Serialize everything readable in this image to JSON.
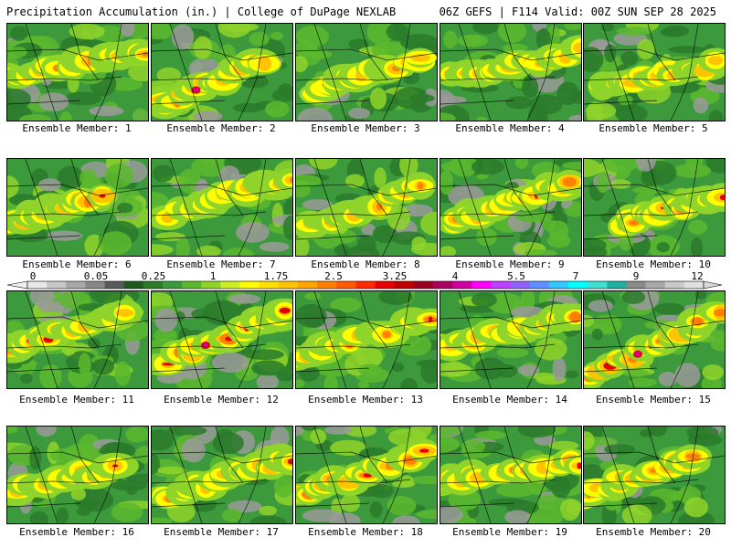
{
  "header": {
    "title_left": "Precipitation Accumulation (in.) | College of DuPage NEXLAB",
    "title_right": "06Z GEFS | F114 Valid: 00Z SUN SEP 28 2025"
  },
  "members": [
    {
      "label": "Ensemble Member: 1"
    },
    {
      "label": "Ensemble Member: 2"
    },
    {
      "label": "Ensemble Member: 3"
    },
    {
      "label": "Ensemble Member: 4"
    },
    {
      "label": "Ensemble Member: 5"
    },
    {
      "label": "Ensemble Member: 6"
    },
    {
      "label": "Ensemble Member: 7"
    },
    {
      "label": "Ensemble Member: 8"
    },
    {
      "label": "Ensemble Member: 9"
    },
    {
      "label": "Ensemble Member: 10"
    },
    {
      "label": "Ensemble Member: 11"
    },
    {
      "label": "Ensemble Member: 12"
    },
    {
      "label": "Ensemble Member: 13"
    },
    {
      "label": "Ensemble Member: 14"
    },
    {
      "label": "Ensemble Member: 15"
    },
    {
      "label": "Ensemble Member: 16"
    },
    {
      "label": "Ensemble Member: 17"
    },
    {
      "label": "Ensemble Member: 18"
    },
    {
      "label": "Ensemble Member: 19"
    },
    {
      "label": "Ensemble Member: 20"
    }
  ],
  "legend": {
    "tick_labels": [
      "0",
      "0.05",
      "0.25",
      "1",
      "1.75",
      "2.5",
      "3.25",
      "4",
      "5.5",
      "7",
      "9",
      "12"
    ],
    "colors": [
      "#e8e8e8",
      "#c8c8c8",
      "#a8a8a8",
      "#888888",
      "#5a5a5a",
      "#1e5a1e",
      "#2a7a2a",
      "#3c9a3c",
      "#5cb82e",
      "#8fd42a",
      "#ccee22",
      "#ffff00",
      "#ffe000",
      "#ffc400",
      "#ffa500",
      "#ff8000",
      "#ff5a00",
      "#ff2a00",
      "#e60000",
      "#c00000",
      "#9a0020",
      "#aa0060",
      "#d000a0",
      "#ff00ff",
      "#c040ff",
      "#9060ff",
      "#6090ff",
      "#30c8ff",
      "#00ffff",
      "#40e0d0",
      "#20b0a0",
      "#8a8a8a",
      "#a8a8a8",
      "#c8c8c8",
      "#e0e0e0"
    ]
  },
  "map_colors": {
    "dark_green": "#2a7a2a",
    "green": "#3c9a3c",
    "light_green": "#5cb82e",
    "lime": "#8fd42a",
    "yellow": "#ffff00",
    "gold": "#ffc400",
    "orange": "#ff8000",
    "red": "#e60000",
    "magenta": "#d000a0",
    "gray": "#9a9a9a"
  }
}
